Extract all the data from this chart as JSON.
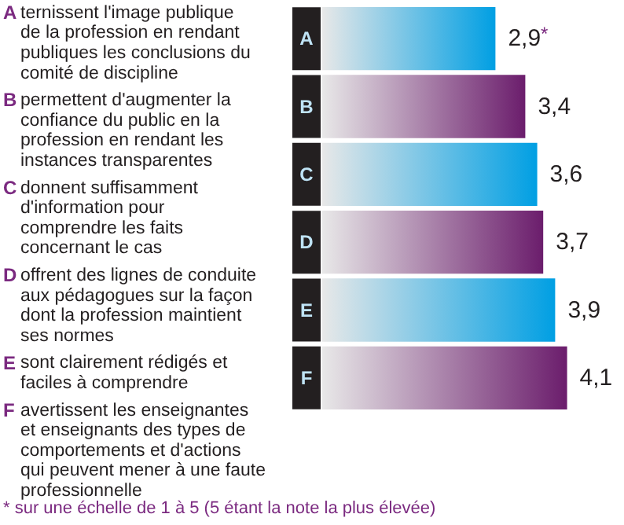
{
  "chart_data": {
    "type": "bar",
    "orientation": "horizontal",
    "categories": [
      "A",
      "B",
      "C",
      "D",
      "E",
      "F"
    ],
    "values": [
      2.9,
      3.4,
      3.6,
      3.7,
      3.9,
      4.1
    ],
    "value_labels": [
      "2,9$^{*}$",
      "3,4",
      "3,6",
      "3,7",
      "3,9",
      "4,1"
    ],
    "colors": [
      "#009fe3",
      "#6b1d6c",
      "#009fe3",
      "#6b1d6c",
      "#009fe3",
      "#6b1d6c"
    ],
    "tick_labels": "y",
    "annotations": [
      "ternissent l'image publique\nde la profession en rendant\npubliques les conclusions du\ncomité de discipline",
      "permettent d'augmenter la\nconfiance du public en la\nprofession en rendant les\ninstances transparentes",
      "donnent suffisamment\nd'information pour\ncomprendre les faits\nconcernant le cas",
      "offrent des lignes de conduite\naux pédagogues sur la façon\ndont la profession maintient\nses normes",
      "sont clairement rédigés et\nfaciles à comprendre",
      "avertissent les enseignantes\net enseignants des types de\ncomportements et d'actions\nqui peuvent mener à une faute\nprofessionnelle",
      "* sur une échelle de 1 à 5 (5 étant la note la plus élevée)"
    ]
  }
}
